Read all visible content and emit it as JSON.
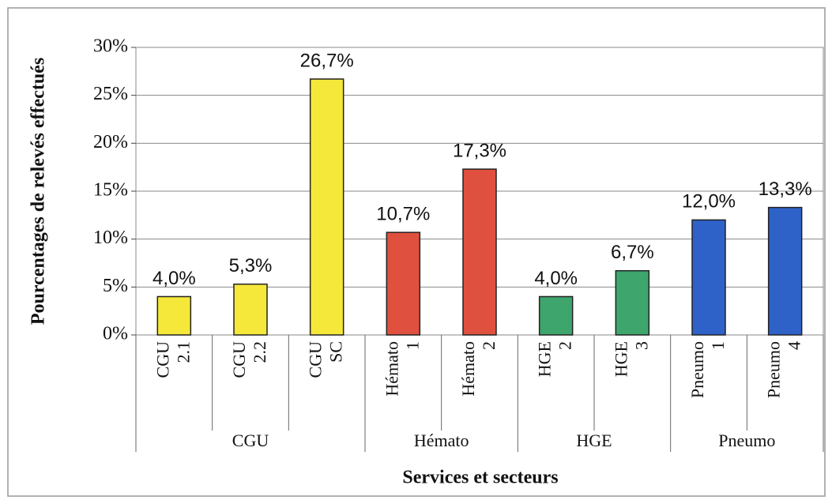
{
  "chart_data": {
    "type": "bar",
    "y_label": "Pourcentages de relevés effectués",
    "x_label": "Services et secteurs",
    "categories": [
      "CGU 2.1",
      "CGU 2.2",
      "CGU SC",
      "Hémato 1",
      "Hémato 2",
      "HGE 2",
      "HGE 3",
      "Pneumo 1",
      "Pneumo 4"
    ],
    "groups": [
      {
        "name": "CGU",
        "count": 3
      },
      {
        "name": "Hémato",
        "count": 2
      },
      {
        "name": "HGE",
        "count": 2
      },
      {
        "name": "Pneumo",
        "count": 2
      }
    ],
    "values": [
      4.0,
      5.3,
      26.7,
      10.7,
      17.3,
      4.0,
      6.7,
      12.0,
      13.3
    ],
    "value_labels": [
      "4,0%",
      "5,3%",
      "26,7%",
      "10,7%",
      "17,3%",
      "4,0%",
      "6,7%",
      "12,0%",
      "13,3%"
    ],
    "colors": [
      "#f6e83a",
      "#f6e83a",
      "#f6e83a",
      "#e0503e",
      "#e0503e",
      "#3ea56c",
      "#3ea56c",
      "#2f62c9",
      "#2f62c9"
    ],
    "ylim": [
      0,
      30
    ],
    "yticks": [
      {
        "value": 0,
        "label": "0%"
      },
      {
        "value": 5,
        "label": "5%"
      },
      {
        "value": 10,
        "label": "10%"
      },
      {
        "value": 15,
        "label": "15%"
      },
      {
        "value": 20,
        "label": "20%"
      },
      {
        "value": 25,
        "label": "25%"
      },
      {
        "value": 30,
        "label": "30%"
      }
    ],
    "grid": true
  }
}
